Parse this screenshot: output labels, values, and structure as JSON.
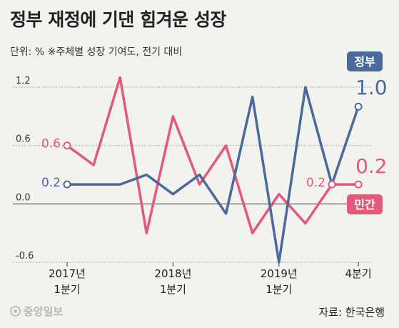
{
  "title": "정부 재정에 기댄 힘겨운 성장",
  "subtitle": "단위: %  ※주체별 성장 기여도, 전기 대비",
  "source": "자료: 한국은행",
  "logo_text": "중앙일보",
  "colors": {
    "government": "#4a6a9c",
    "private": "#e4587a",
    "grid": "#a9a9a9",
    "baseline": "#555555"
  },
  "chart_data": {
    "type": "line",
    "x": [
      "2017-Q1",
      "2017-Q2",
      "2017-Q3",
      "2017-Q4",
      "2018-Q1",
      "2018-Q2",
      "2018-Q3",
      "2018-Q4",
      "2019-Q1",
      "2019-Q2",
      "2019-Q3",
      "2019-Q4"
    ],
    "x_tick_labels": [
      {
        "index": 0,
        "line1": "2017년",
        "line2": "1분기"
      },
      {
        "index": 4,
        "line1": "2018년",
        "line2": "1분기"
      },
      {
        "index": 8,
        "line1": "2019년",
        "line2": "1분기"
      },
      {
        "index": 11,
        "line1": "4분기",
        "line2": ""
      }
    ],
    "y_ticks": [
      {
        "value": 1.2,
        "label": "1.2"
      },
      {
        "value": 0.6,
        "label": "0.6"
      },
      {
        "value": 0.0,
        "label": "0.0"
      },
      {
        "value": -0.6,
        "label": "-0.6"
      }
    ],
    "ylim": [
      -0.6,
      1.2
    ],
    "series": [
      {
        "key": "government",
        "name": "정부",
        "values": [
          0.2,
          0.2,
          0.2,
          0.3,
          0.1,
          0.3,
          -0.1,
          1.1,
          -0.6,
          1.2,
          0.2,
          1.0
        ],
        "start_label": "0.2",
        "end_label": "1.0"
      },
      {
        "key": "private",
        "name": "민간",
        "values": [
          0.6,
          0.4,
          1.3,
          -0.3,
          0.9,
          0.2,
          0.6,
          -0.3,
          0.1,
          -0.2,
          0.2,
          0.2
        ],
        "start_label": "0.6",
        "end_label": "0.2",
        "extra_label": {
          "index": 10,
          "text": "0.2"
        }
      }
    ]
  }
}
